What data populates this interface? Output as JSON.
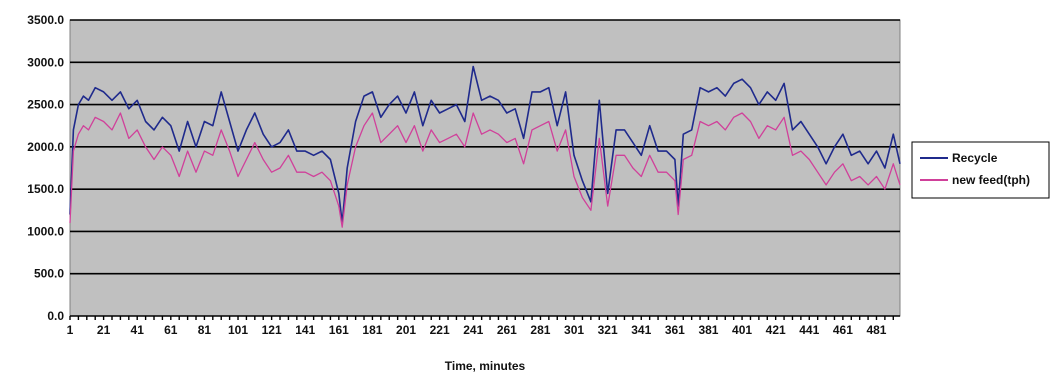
{
  "chart_data": {
    "type": "line",
    "title": "",
    "xlabel": "Time, minutes",
    "ylabel": "",
    "xlim": [
      1,
      495
    ],
    "ylim": [
      0,
      3500
    ],
    "y_ticks": [
      0,
      500,
      1000,
      1500,
      2000,
      2500,
      3000,
      3500
    ],
    "y_tick_labels": [
      "0.0",
      "500.0",
      "1000.0",
      "1500.0",
      "2000.0",
      "2500.0",
      "3000.0",
      "3500.0"
    ],
    "x_ticks": [
      1,
      21,
      41,
      61,
      81,
      101,
      121,
      141,
      161,
      181,
      201,
      221,
      241,
      261,
      281,
      301,
      321,
      341,
      361,
      381,
      401,
      421,
      441,
      461,
      481
    ],
    "x_tick_labels": [
      "1",
      "21",
      "41",
      "61",
      "81",
      "101",
      "121",
      "141",
      "161",
      "181",
      "201",
      "221",
      "241",
      "261",
      "281",
      "301",
      "321",
      "341",
      "361",
      "381",
      "401",
      "421",
      "441",
      "461",
      "481"
    ],
    "grid": true,
    "legend_position": "right",
    "plot_background": "#c0c0c0",
    "x": [
      1,
      3,
      6,
      9,
      12,
      16,
      21,
      26,
      31,
      36,
      41,
      46,
      51,
      56,
      61,
      66,
      71,
      76,
      81,
      86,
      91,
      96,
      101,
      106,
      111,
      116,
      121,
      126,
      131,
      136,
      141,
      146,
      151,
      156,
      161,
      163,
      166,
      171,
      176,
      181,
      186,
      191,
      196,
      201,
      206,
      211,
      216,
      221,
      226,
      231,
      236,
      241,
      246,
      251,
      256,
      261,
      266,
      271,
      276,
      281,
      286,
      291,
      296,
      301,
      306,
      311,
      316,
      321,
      326,
      331,
      336,
      341,
      346,
      351,
      356,
      361,
      363,
      366,
      371,
      376,
      381,
      386,
      391,
      396,
      401,
      406,
      411,
      416,
      421,
      426,
      431,
      436,
      441,
      446,
      451,
      456,
      461,
      466,
      471,
      476,
      481,
      486,
      491,
      495
    ],
    "series": [
      {
        "name": "Recycle",
        "color": "#1f2a8c",
        "values": [
          1200,
          2200,
          2500,
          2600,
          2550,
          2700,
          2650,
          2550,
          2650,
          2450,
          2550,
          2300,
          2200,
          2350,
          2250,
          1950,
          2300,
          2000,
          2300,
          2250,
          2650,
          2300,
          1950,
          2200,
          2400,
          2150,
          2000,
          2050,
          2200,
          1950,
          1950,
          1900,
          1950,
          1850,
          1450,
          1100,
          1750,
          2300,
          2600,
          2650,
          2350,
          2500,
          2600,
          2400,
          2650,
          2250,
          2550,
          2400,
          2450,
          2500,
          2300,
          2950,
          2550,
          2600,
          2550,
          2400,
          2450,
          2100,
          2650,
          2650,
          2700,
          2250,
          2650,
          1900,
          1600,
          1350,
          2550,
          1450,
          2200,
          2200,
          2050,
          1900,
          2250,
          1950,
          1950,
          1850,
          1300,
          2150,
          2200,
          2700,
          2650,
          2700,
          2600,
          2750,
          2800,
          2700,
          2500,
          2650,
          2550,
          2750,
          2200,
          2300,
          2150,
          2000,
          1800,
          2000,
          2150,
          1900,
          1950,
          1800,
          1950,
          1750,
          2150,
          1800
        ]
      },
      {
        "name": "new feed(tph)",
        "color": "#d0409a",
        "values": [
          1100,
          1950,
          2150,
          2250,
          2200,
          2350,
          2300,
          2200,
          2400,
          2100,
          2200,
          2000,
          1850,
          2000,
          1900,
          1650,
          1950,
          1700,
          1950,
          1900,
          2200,
          1950,
          1650,
          1850,
          2050,
          1850,
          1700,
          1750,
          1900,
          1700,
          1700,
          1650,
          1700,
          1600,
          1300,
          1050,
          1550,
          2000,
          2250,
          2400,
          2050,
          2150,
          2250,
          2050,
          2250,
          1950,
          2200,
          2050,
          2100,
          2150,
          2000,
          2400,
          2150,
          2200,
          2150,
          2050,
          2100,
          1800,
          2200,
          2250,
          2300,
          1950,
          2200,
          1650,
          1400,
          1250,
          2100,
          1300,
          1900,
          1900,
          1750,
          1650,
          1900,
          1700,
          1700,
          1600,
          1200,
          1850,
          1900,
          2300,
          2250,
          2300,
          2200,
          2350,
          2400,
          2300,
          2100,
          2250,
          2200,
          2350,
          1900,
          1950,
          1850,
          1700,
          1550,
          1700,
          1800,
          1600,
          1650,
          1550,
          1650,
          1500,
          1800,
          1550
        ]
      }
    ]
  }
}
